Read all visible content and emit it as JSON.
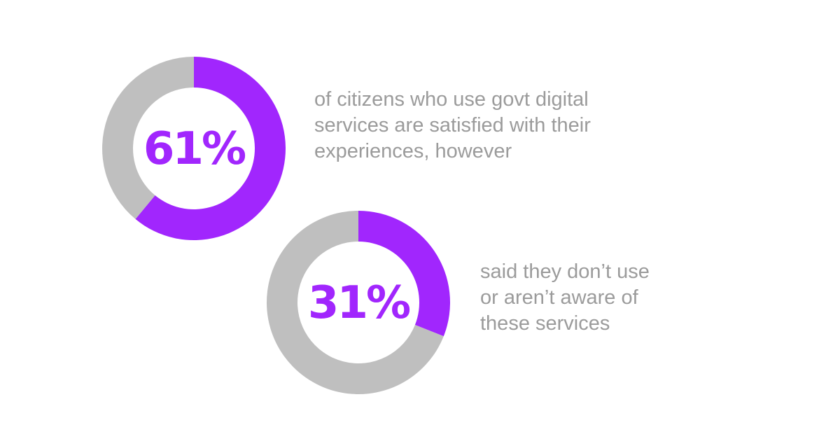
{
  "chart_data": [
    {
      "type": "pie",
      "donut": true,
      "label": "61%",
      "values": [
        61,
        39
      ],
      "colors": [
        "#a126fd",
        "#bfbfbf"
      ],
      "caption": [
        "of citizens who use govt digital",
        "services are satisfied with their",
        "experiences, however"
      ]
    },
    {
      "type": "pie",
      "donut": true,
      "label": "31%",
      "values": [
        31,
        69
      ],
      "colors": [
        "#a126fd",
        "#bfbfbf"
      ],
      "caption": [
        "said they don’t use",
        "or aren’t aware of",
        "these services"
      ]
    }
  ],
  "colors": {
    "accent": "#a126fd",
    "track": "#bfbfbf",
    "text": "#9b9b9b"
  }
}
